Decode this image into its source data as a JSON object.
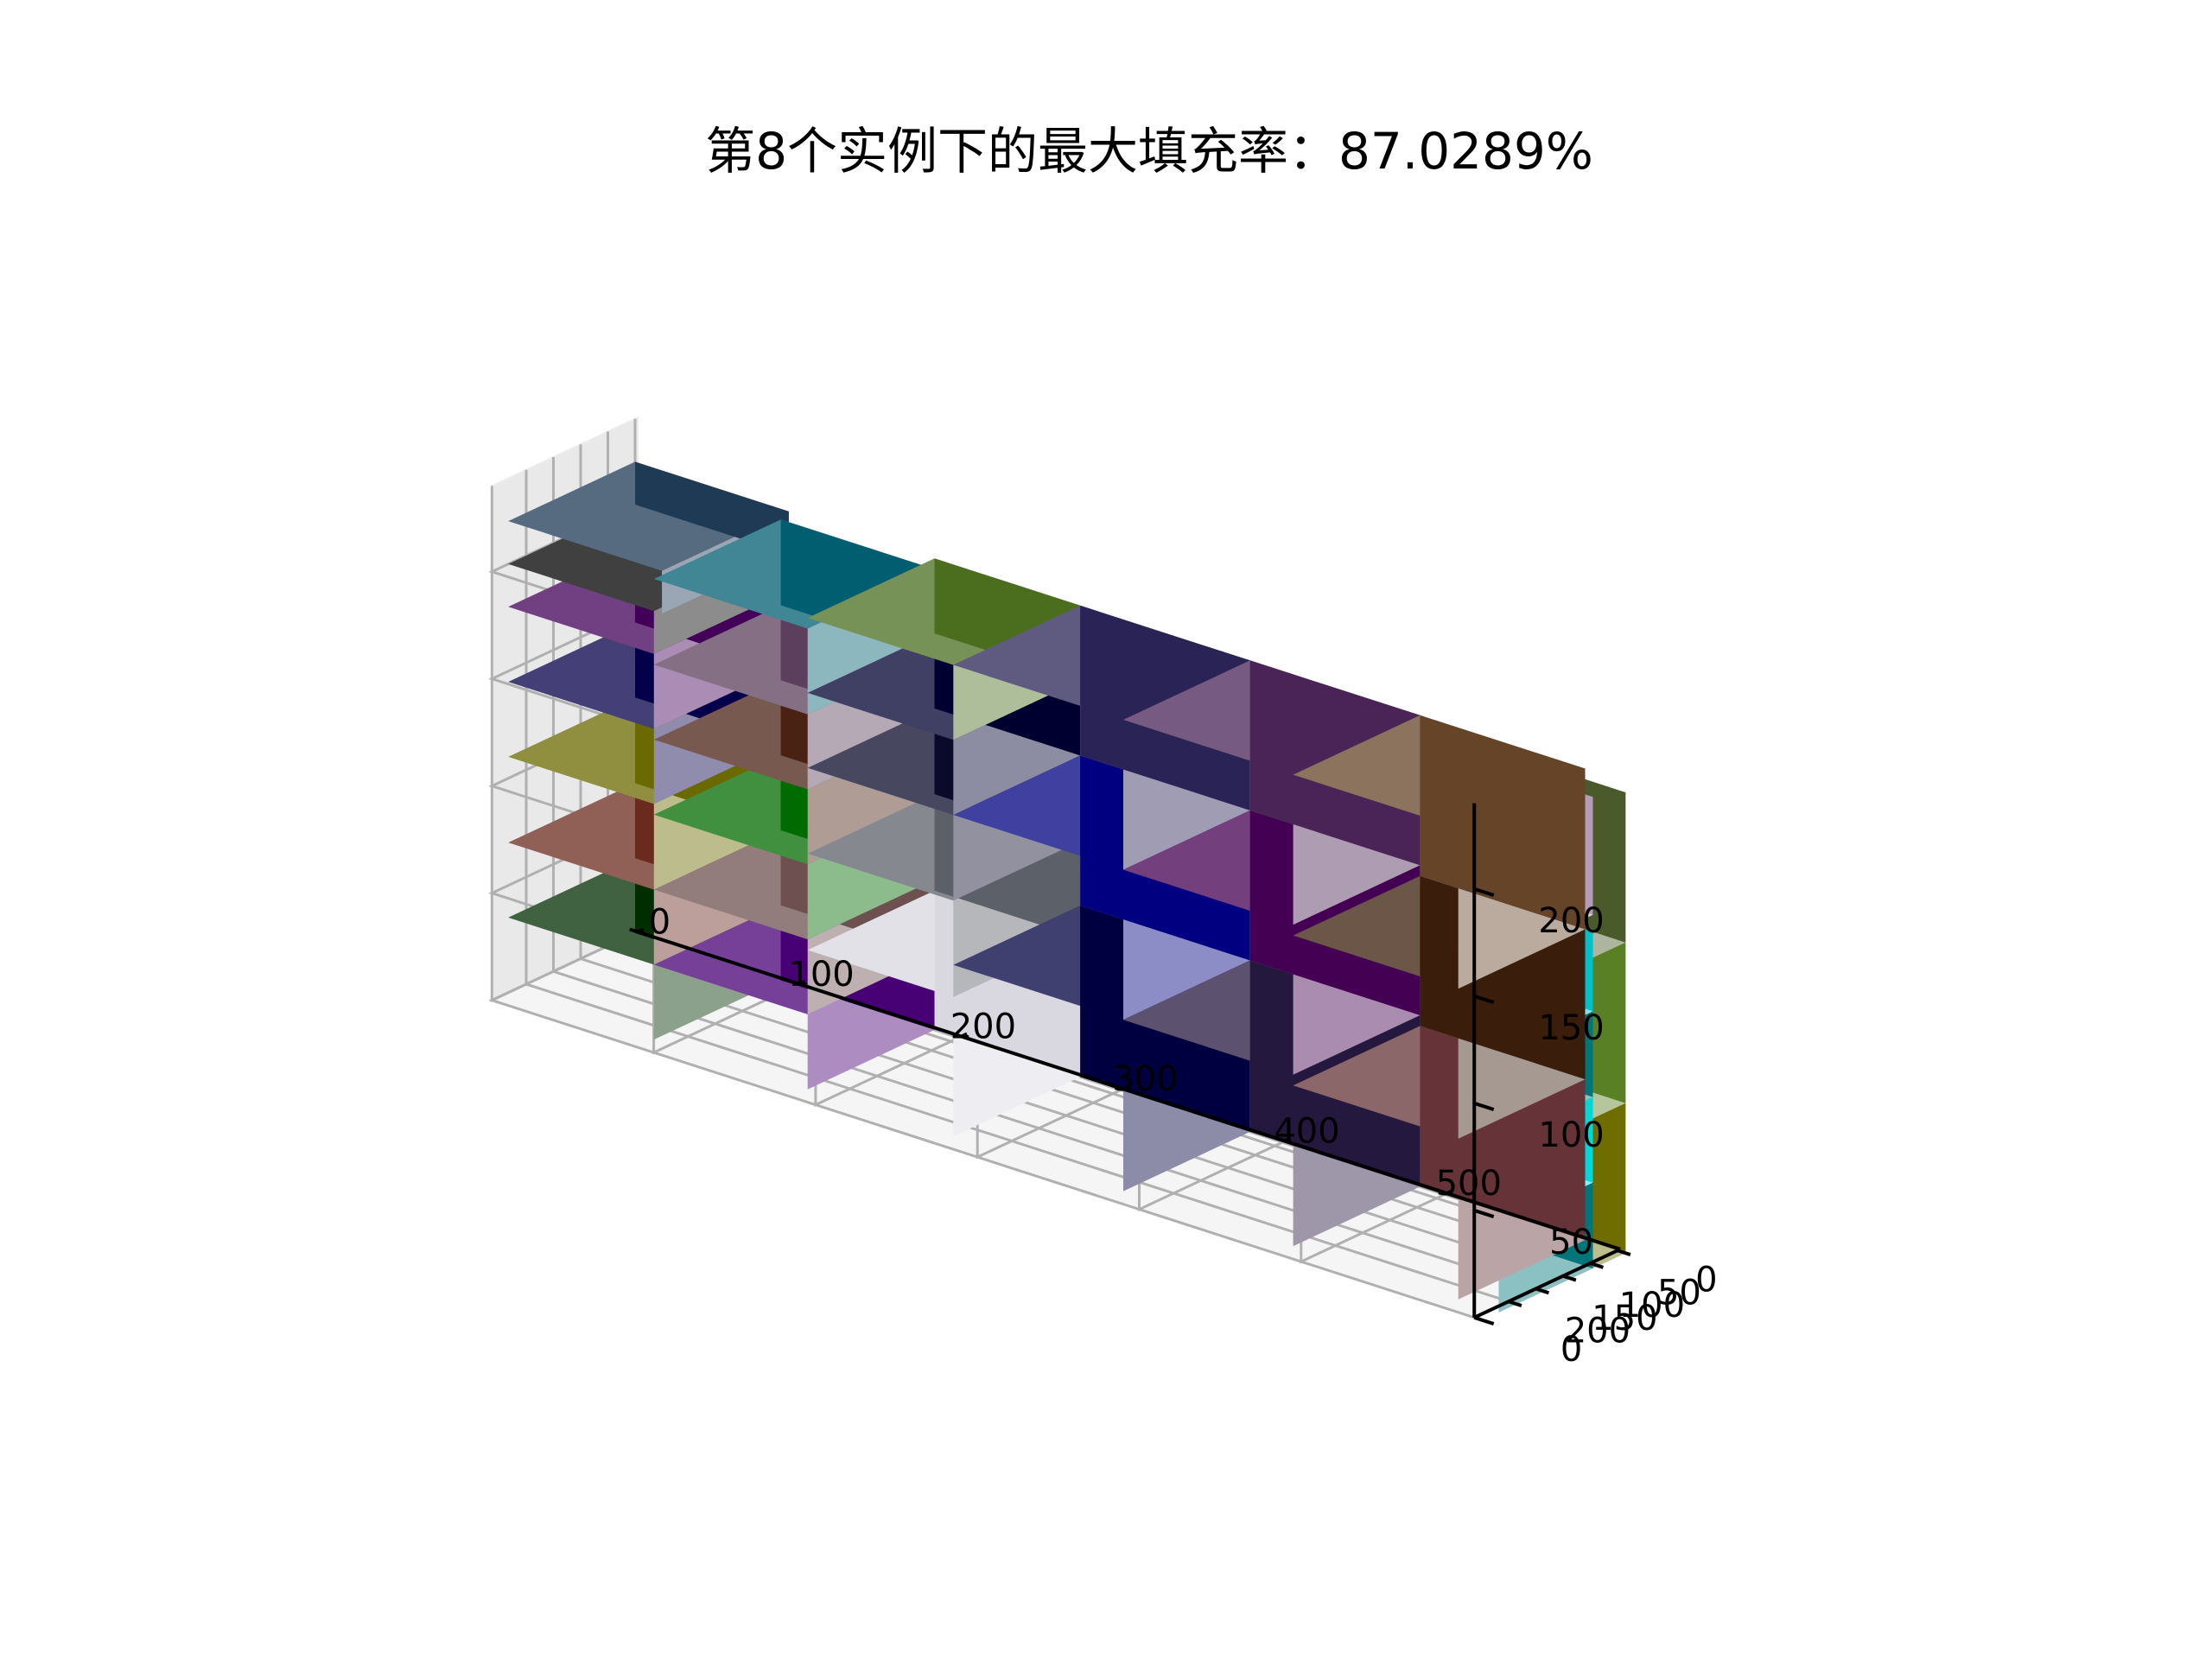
{
  "chart_data": {
    "type": "3d-bar",
    "title": "第8个实例下的最大填充率：87.0289%",
    "xlabel": "",
    "ylabel": "",
    "zlabel": "",
    "xlim": [
      0,
      587
    ],
    "ylim": [
      0,
      233
    ],
    "zlim": [
      0,
      220
    ],
    "x_ticks": [
      0,
      100,
      200,
      300,
      400,
      500
    ],
    "y_ticks": [
      0,
      50,
      100,
      150,
      200
    ],
    "z_ticks": [
      0,
      50,
      100,
      150,
      200
    ],
    "grid": true,
    "boxes": [
      {
        "x": 0,
        "y": 0,
        "z": 0,
        "dx": 90,
        "dy": 233,
        "dz": 35,
        "color": "#002e00"
      },
      {
        "x": 0,
        "y": 0,
        "z": 35,
        "dx": 90,
        "dy": 233,
        "dz": 35,
        "color": "#6b2a1e"
      },
      {
        "x": 0,
        "y": 0,
        "z": 70,
        "dx": 90,
        "dy": 233,
        "dz": 40,
        "color": "#6b6a00"
      },
      {
        "x": 0,
        "y": 0,
        "z": 110,
        "dx": 90,
        "dy": 233,
        "dz": 35,
        "color": "#05004a"
      },
      {
        "x": 0,
        "y": 0,
        "z": 145,
        "dx": 90,
        "dy": 233,
        "dz": 35,
        "color": "#420059"
      },
      {
        "x": 0,
        "y": 0,
        "z": 180,
        "dx": 90,
        "dy": 233,
        "dz": 20,
        "color": "#000000"
      },
      {
        "x": 0,
        "y": 0,
        "z": 200,
        "dx": 95,
        "dy": 233,
        "dz": 20,
        "color": "#1f3a55"
      },
      {
        "x": 90,
        "y": 0,
        "z": 0,
        "dx": 95,
        "dy": 233,
        "dz": 35,
        "color": "#480075"
      },
      {
        "x": 90,
        "y": 0,
        "z": 35,
        "dx": 95,
        "dy": 233,
        "dz": 35,
        "color": "#6e5050"
      },
      {
        "x": 90,
        "y": 0,
        "z": 70,
        "dx": 95,
        "dy": 233,
        "dz": 35,
        "color": "#006b00"
      },
      {
        "x": 90,
        "y": 0,
        "z": 105,
        "dx": 95,
        "dy": 233,
        "dz": 35,
        "color": "#4a2214"
      },
      {
        "x": 90,
        "y": 0,
        "z": 140,
        "dx": 95,
        "dy": 233,
        "dz": 35,
        "color": "#5c3f5c"
      },
      {
        "x": 90,
        "y": 0,
        "z": 175,
        "dx": 95,
        "dy": 233,
        "dz": 40,
        "color": "#005e70"
      },
      {
        "x": 185,
        "y": 0,
        "z": 0,
        "dx": 90,
        "dy": 233,
        "dz": 65,
        "color": "#d9d7e0"
      },
      {
        "x": 185,
        "y": 0,
        "z": 65,
        "dx": 90,
        "dy": 233,
        "dz": 45,
        "color": "#5c6068"
      },
      {
        "x": 185,
        "y": 0,
        "z": 110,
        "dx": 90,
        "dy": 233,
        "dz": 40,
        "color": "#0a0a2a"
      },
      {
        "x": 185,
        "y": 0,
        "z": 150,
        "dx": 90,
        "dy": 233,
        "dz": 35,
        "color": "#000030"
      },
      {
        "x": 185,
        "y": 0,
        "z": 185,
        "dx": 90,
        "dy": 233,
        "dz": 35,
        "color": "#4a6e1e"
      },
      {
        "x": 275,
        "y": 0,
        "z": 0,
        "dx": 105,
        "dy": 233,
        "dz": 80,
        "color": "#000040"
      },
      {
        "x": 275,
        "y": 0,
        "z": 80,
        "dx": 105,
        "dy": 233,
        "dz": 70,
        "color": "#000080"
      },
      {
        "x": 275,
        "y": 0,
        "z": 150,
        "dx": 105,
        "dy": 233,
        "dz": 70,
        "color": "#2a2456"
      },
      {
        "x": 380,
        "y": 0,
        "z": 0,
        "dx": 105,
        "dy": 233,
        "dz": 80,
        "color": "#25183f"
      },
      {
        "x": 380,
        "y": 0,
        "z": 80,
        "dx": 105,
        "dy": 233,
        "dz": 70,
        "color": "#440052"
      },
      {
        "x": 380,
        "y": 0,
        "z": 150,
        "dx": 105,
        "dy": 233,
        "dz": 70,
        "color": "#4a2357"
      },
      {
        "x": 485,
        "y": 0,
        "z": 0,
        "dx": 102,
        "dy": 233,
        "dz": 75,
        "color": "#663438"
      },
      {
        "x": 485,
        "y": 0,
        "z": 75,
        "dx": 102,
        "dy": 233,
        "dz": 70,
        "color": "#3a1d0a"
      },
      {
        "x": 485,
        "y": 0,
        "z": 145,
        "dx": 102,
        "dy": 233,
        "dz": 75,
        "color": "#664428"
      }
    ],
    "side_boxes": [
      {
        "x": 587,
        "y": 0,
        "z": 0,
        "dx": 25,
        "dy": 60,
        "dz": 70,
        "color": "#6f6c00"
      },
      {
        "x": 587,
        "y": 0,
        "z": 70,
        "dx": 25,
        "dy": 60,
        "dz": 75,
        "color": "#5a8026"
      },
      {
        "x": 587,
        "y": 0,
        "z": 145,
        "dx": 25,
        "dy": 60,
        "dz": 70,
        "color": "#4a5a2a"
      },
      {
        "x": 587,
        "y": 60,
        "z": 0,
        "dx": 25,
        "dy": 173,
        "dz": 40,
        "color": "#00757a"
      },
      {
        "x": 587,
        "y": 60,
        "z": 40,
        "dx": 25,
        "dy": 173,
        "dz": 40,
        "color": "#00d8d8"
      },
      {
        "x": 587,
        "y": 60,
        "z": 80,
        "dx": 25,
        "dy": 173,
        "dz": 40,
        "color": "#00757a"
      },
      {
        "x": 587,
        "y": 60,
        "z": 120,
        "dx": 25,
        "dy": 173,
        "dz": 45,
        "color": "#00c0c8"
      },
      {
        "x": 587,
        "y": 60,
        "z": 165,
        "dx": 25,
        "dy": 173,
        "dz": 55,
        "color": "#b59bb8"
      }
    ]
  }
}
